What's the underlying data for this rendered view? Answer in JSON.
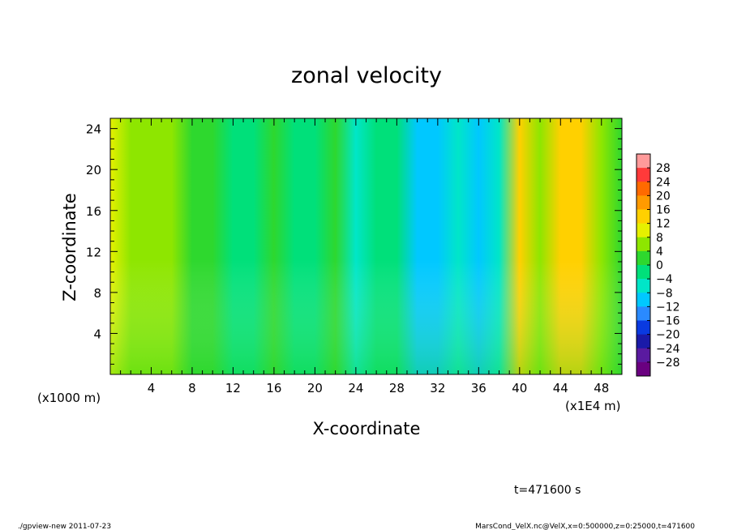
{
  "chart_data": {
    "type": "heatmap",
    "title": "zonal velocity",
    "xlabel": "X-coordinate",
    "ylabel": "Z-coordinate",
    "x_unit": "(x1E4 m)",
    "y_unit": "(x1000 m)",
    "xlim": [
      0,
      50
    ],
    "ylim": [
      0,
      25
    ],
    "x_ticks": [
      4,
      8,
      12,
      16,
      20,
      24,
      28,
      32,
      36,
      40,
      44,
      48
    ],
    "y_ticks": [
      4,
      8,
      12,
      16,
      20,
      24
    ],
    "colorbar": {
      "levels": [
        28,
        24,
        20,
        16,
        12,
        8,
        4,
        0,
        -4,
        -8,
        -12,
        -16,
        -20,
        -24,
        -28
      ],
      "colors": [
        "#ff9a9a",
        "#ff3a3a",
        "#ff6a00",
        "#ff9a00",
        "#ffd000",
        "#e6f000",
        "#8ee600",
        "#2ed82e",
        "#00e07a",
        "#00e6c8",
        "#00c8ff",
        "#2a8aff",
        "#0a3ae0",
        "#1a1aa8",
        "#5a1aa0",
        "#6a0080"
      ]
    },
    "columns": [
      {
        "x": 0,
        "value": 8.5
      },
      {
        "x": 2,
        "value": 7.0
      },
      {
        "x": 4,
        "value": 5.0
      },
      {
        "x": 6,
        "value": 4.5
      },
      {
        "x": 8,
        "value": 2.0
      },
      {
        "x": 10,
        "value": 3.0
      },
      {
        "x": 12,
        "value": -2.0
      },
      {
        "x": 14,
        "value": -3.0
      },
      {
        "x": 16,
        "value": 2.5
      },
      {
        "x": 18,
        "value": -1.0
      },
      {
        "x": 20,
        "value": -2.0
      },
      {
        "x": 22,
        "value": 0.5
      },
      {
        "x": 24,
        "value": -7.0
      },
      {
        "x": 26,
        "value": -2.0
      },
      {
        "x": 28,
        "value": -4.0
      },
      {
        "x": 30,
        "value": -9.0
      },
      {
        "x": 32,
        "value": -10.0
      },
      {
        "x": 34,
        "value": -6.0
      },
      {
        "x": 36,
        "value": -12.0
      },
      {
        "x": 38,
        "value": -5.0
      },
      {
        "x": 40,
        "value": 12.0
      },
      {
        "x": 42,
        "value": 7.0
      },
      {
        "x": 44,
        "value": 14.0
      },
      {
        "x": 46,
        "value": 13.0
      },
      {
        "x": 48,
        "value": 4.0
      },
      {
        "x": 50,
        "value": 3.0
      }
    ]
  },
  "annotations": {
    "time": "t=471600 s",
    "footer_left": "./gpview-new   2011-07-23",
    "footer_right": "MarsCond_VelX.nc@VelX,x=0:500000,z=0:25000,t=471600"
  }
}
